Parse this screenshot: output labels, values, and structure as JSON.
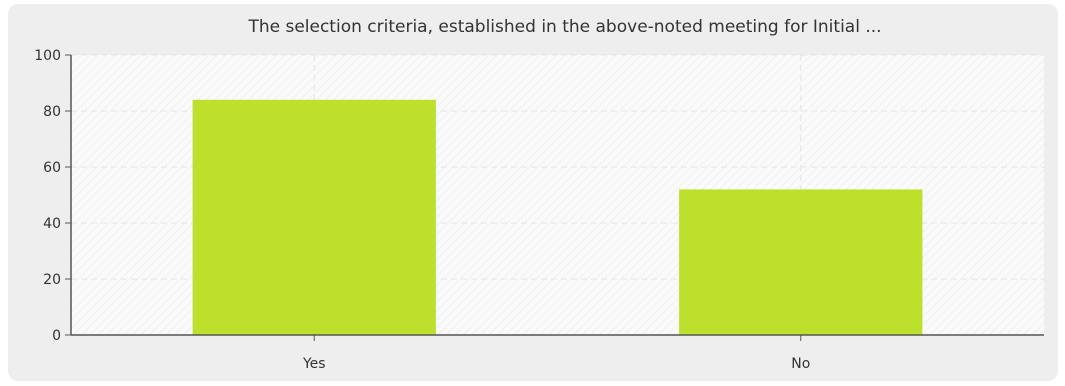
{
  "chart_data": {
    "type": "bar",
    "title": "The selection criteria, established in the above-noted meeting for Initial ...",
    "xlabel": "",
    "ylabel": "",
    "categories": [
      "Yes",
      "No"
    ],
    "values": [
      84,
      52
    ],
    "ylim": [
      0,
      100
    ],
    "yticks": [
      "0",
      "20",
      "40",
      "60",
      "80",
      "100"
    ],
    "grid": true,
    "bar_color": "#bde02c"
  }
}
